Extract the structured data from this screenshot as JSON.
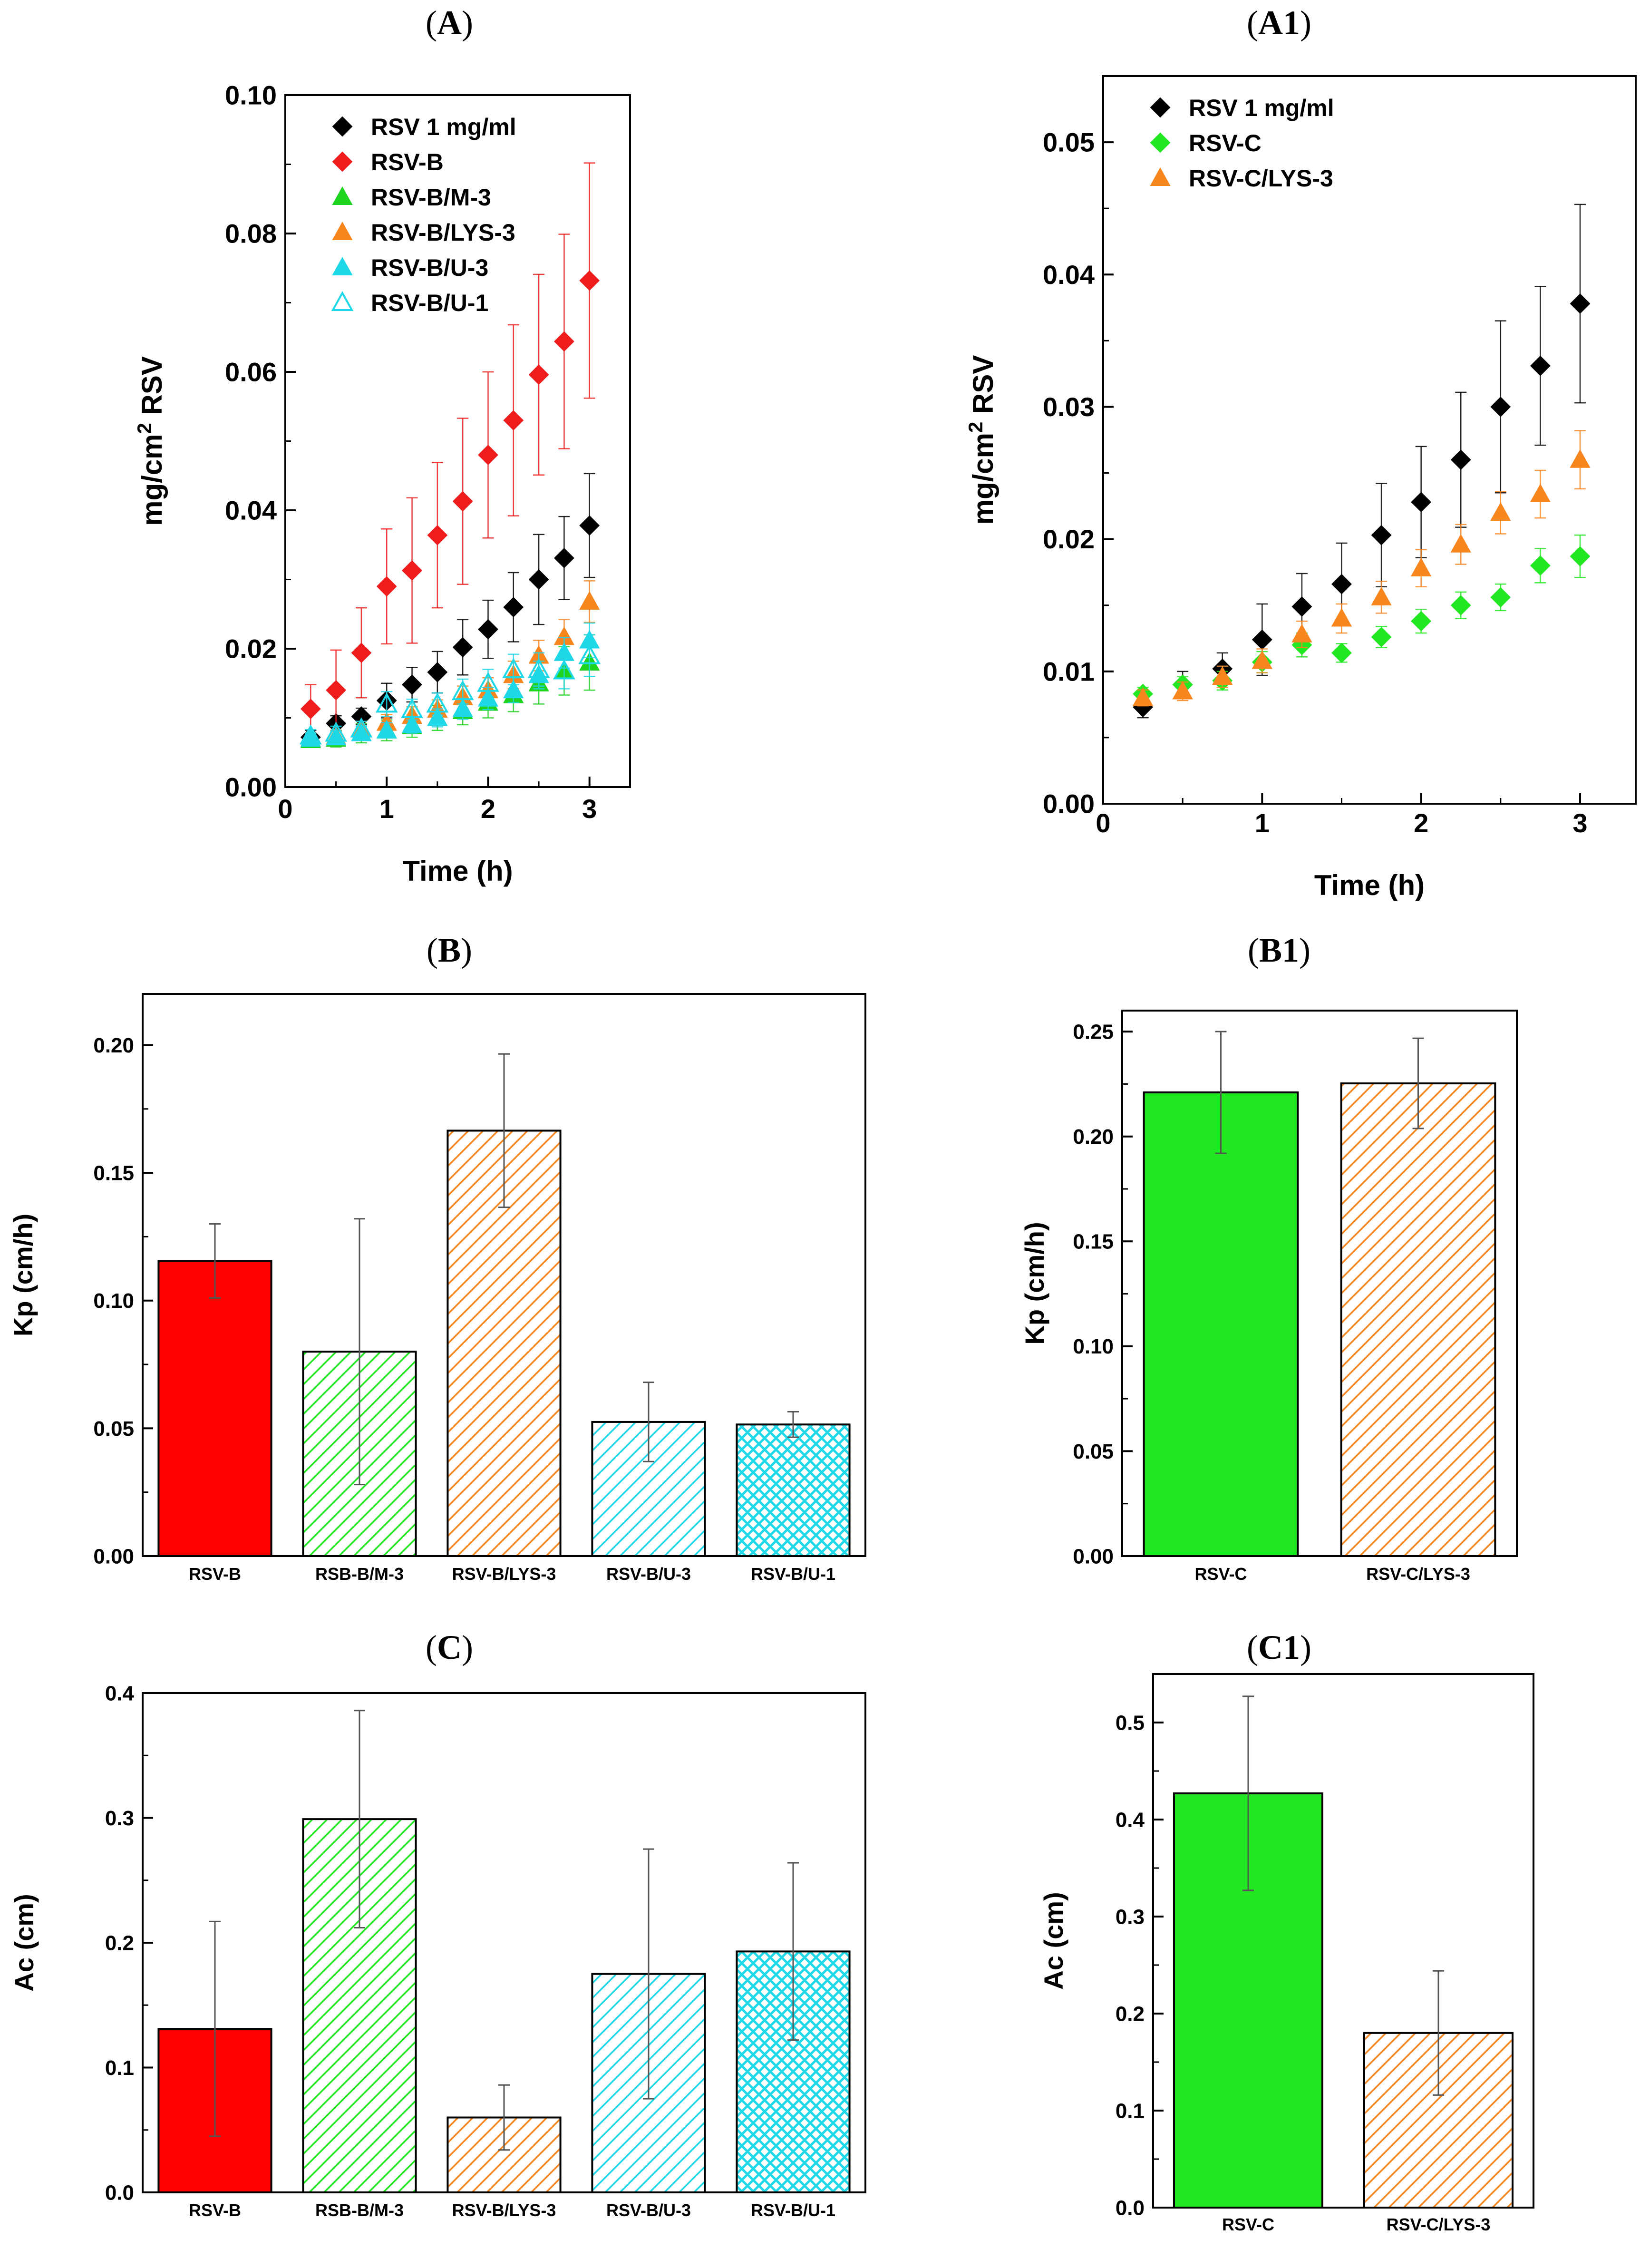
{
  "chart_data": [
    {
      "id": "A",
      "panel_label": "(A)",
      "type": "scatter",
      "xlabel": "Time (h)",
      "ylabel": "mg/cm² RSV",
      "xlim": [
        0,
        3.4
      ],
      "ylim": [
        0,
        0.1
      ],
      "xticks": [
        "0",
        "1",
        "2",
        "3"
      ],
      "yticks": [
        "0.00",
        "0.02",
        "0.04",
        "0.06",
        "0.08",
        "0.10"
      ],
      "legend_position": "top-left",
      "x": [
        0.25,
        0.5,
        0.75,
        1.0,
        1.25,
        1.5,
        1.75,
        2.0,
        2.25,
        2.5,
        2.75,
        3.0
      ],
      "series": [
        {
          "name": "RSV 1 mg/ml",
          "color": "#000000",
          "marker": "diamond",
          "values": [
            0.0072,
            0.0092,
            0.0102,
            0.0125,
            0.0148,
            0.0166,
            0.0202,
            0.0228,
            0.026,
            0.03,
            0.0331,
            0.0378
          ],
          "errors": [
            0.001,
            0.0011,
            0.0012,
            0.0025,
            0.0025,
            0.003,
            0.004,
            0.0042,
            0.005,
            0.0065,
            0.006,
            0.0075
          ]
        },
        {
          "name": "RSV-B",
          "color": "#ee1c1c",
          "marker": "diamond",
          "values": [
            0.0113,
            0.014,
            0.0194,
            0.029,
            0.0313,
            0.0364,
            0.0413,
            0.048,
            0.053,
            0.0596,
            0.0644,
            0.0732
          ],
          "errors": [
            0.0035,
            0.0058,
            0.0065,
            0.0083,
            0.0105,
            0.0105,
            0.012,
            0.012,
            0.0138,
            0.0145,
            0.0155,
            0.017
          ]
        },
        {
          "name": "RSV-B/M-3",
          "color": "#1ed41e",
          "marker": "triangle",
          "values": [
            0.0068,
            0.007,
            0.0078,
            0.0082,
            0.0088,
            0.01,
            0.011,
            0.0122,
            0.0133,
            0.015,
            0.0168,
            0.018
          ],
          "errors": [
            0.001,
            0.0012,
            0.0014,
            0.0015,
            0.0016,
            0.0018,
            0.002,
            0.0022,
            0.0024,
            0.003,
            0.0035,
            0.004
          ]
        },
        {
          "name": "RSV-B/LYS-3",
          "color": "#f7861f",
          "marker": "triangle",
          "values": [
            0.007,
            0.0073,
            0.0085,
            0.0093,
            0.0103,
            0.0112,
            0.013,
            0.014,
            0.0162,
            0.019,
            0.0217,
            0.0268
          ],
          "errors": [
            0.0008,
            0.0009,
            0.001,
            0.0012,
            0.0013,
            0.0014,
            0.0016,
            0.0018,
            0.002,
            0.0022,
            0.0025,
            0.003
          ]
        },
        {
          "name": "RSV-B/U-3",
          "color": "#1ed8e8",
          "marker": "triangle",
          "values": [
            0.007,
            0.0072,
            0.0078,
            0.0082,
            0.009,
            0.01,
            0.0113,
            0.0128,
            0.014,
            0.0162,
            0.0194,
            0.0212
          ],
          "errors": [
            0.0008,
            0.0009,
            0.001,
            0.0011,
            0.0012,
            0.0013,
            0.0015,
            0.0016,
            0.0018,
            0.002,
            0.0022,
            0.0025
          ]
        },
        {
          "name": "RSV-B/U-1",
          "color": "#1ed8e8",
          "marker": "triangle-open",
          "values": [
            0.0074,
            0.0078,
            0.0084,
            0.012,
            0.0112,
            0.012,
            0.0138,
            0.015,
            0.017,
            0.017,
            0.0168,
            0.019
          ],
          "errors": [
            0.0009,
            0.001,
            0.0011,
            0.0018,
            0.0015,
            0.0016,
            0.0018,
            0.002,
            0.0022,
            0.0024,
            0.0026,
            0.003
          ]
        }
      ]
    },
    {
      "id": "A1",
      "panel_label": "(A1)",
      "type": "scatter",
      "xlabel": "Time (h)",
      "ylabel": "mg/cm² RSV",
      "xlim": [
        0,
        3.35
      ],
      "ylim": [
        0,
        0.055
      ],
      "xticks": [
        "0",
        "1",
        "2",
        "3"
      ],
      "yticks": [
        "0.00",
        "0.01",
        "0.02",
        "0.03",
        "0.04",
        "0.05"
      ],
      "legend_position": "top-left",
      "x": [
        0.25,
        0.5,
        0.75,
        1.0,
        1.25,
        1.5,
        1.75,
        2.0,
        2.25,
        2.5,
        2.75,
        3.0
      ],
      "series": [
        {
          "name": "RSV 1 mg/ml",
          "color": "#000000",
          "marker": "diamond",
          "values": [
            0.0073,
            0.009,
            0.0102,
            0.0124,
            0.0149,
            0.0166,
            0.0203,
            0.0228,
            0.026,
            0.03,
            0.0331,
            0.0378
          ],
          "errors": [
            0.0008,
            0.001,
            0.0012,
            0.0027,
            0.0025,
            0.0031,
            0.0039,
            0.0042,
            0.0051,
            0.0065,
            0.006,
            0.0075
          ]
        },
        {
          "name": "RSV-C",
          "color": "#22e822",
          "marker": "diamond",
          "values": [
            0.0083,
            0.009,
            0.0093,
            0.0107,
            0.012,
            0.0114,
            0.0126,
            0.0138,
            0.015,
            0.0156,
            0.018,
            0.0187
          ],
          "errors": [
            0.0005,
            0.0006,
            0.0007,
            0.0008,
            0.0009,
            0.0007,
            0.0008,
            0.0009,
            0.001,
            0.001,
            0.0013,
            0.0016
          ]
        },
        {
          "name": "RSV-C/LYS-3",
          "color": "#f7861f",
          "marker": "triangle",
          "values": [
            0.008,
            0.0085,
            0.0096,
            0.0108,
            0.0128,
            0.014,
            0.0156,
            0.0178,
            0.0196,
            0.022,
            0.0234,
            0.026
          ],
          "errors": [
            0.0006,
            0.0007,
            0.0008,
            0.0009,
            0.001,
            0.0011,
            0.0012,
            0.0014,
            0.0015,
            0.0016,
            0.0018,
            0.0022
          ]
        }
      ]
    },
    {
      "id": "B",
      "panel_label": "(B)",
      "type": "bar",
      "ylabel": "Kp (cm/h)",
      "ylim": [
        0,
        0.22
      ],
      "yticks": [
        "0.00",
        "0.05",
        "0.10",
        "0.15",
        "0.20"
      ],
      "categories": [
        "RSV-B",
        "RSB-B/M-3",
        "RSV-B/LYS-3",
        "RSV-B/U-3",
        "RSV-B/U-1"
      ],
      "values": [
        0.1155,
        0.08,
        0.1665,
        0.0525,
        0.0515
      ],
      "errors": [
        0.0145,
        0.052,
        0.03,
        0.0155,
        0.005
      ],
      "colors": [
        "#ff0000",
        "#22e822",
        "#f7861f",
        "#1ed8e8",
        "#1ed8e8"
      ],
      "patterns": [
        "solid",
        "diag",
        "diag",
        "diag",
        "cross"
      ]
    },
    {
      "id": "B1",
      "panel_label": "(B1)",
      "type": "bar",
      "ylabel": "Kp (cm/h)",
      "ylim": [
        0,
        0.26
      ],
      "yticks": [
        "0.00",
        "0.05",
        "0.10",
        "0.15",
        "0.20",
        "0.25"
      ],
      "categories": [
        "RSV-C",
        "RSV-C/LYS-3"
      ],
      "values": [
        0.221,
        0.2253
      ],
      "errors": [
        0.029,
        0.0215
      ],
      "colors": [
        "#22e822",
        "#f7861f"
      ],
      "patterns": [
        "solid",
        "diag"
      ]
    },
    {
      "id": "C",
      "panel_label": "(C)",
      "type": "bar",
      "ylabel": "Ac (cm)",
      "ylim": [
        0,
        0.4
      ],
      "yticks": [
        "0.0",
        "0.1",
        "0.2",
        "0.3",
        "0.4"
      ],
      "categories": [
        "RSV-B",
        "RSB-B/M-3",
        "RSV-B/LYS-3",
        "RSV-B/U-3",
        "RSV-B/U-1"
      ],
      "values": [
        0.131,
        0.299,
        0.06,
        0.175,
        0.193
      ],
      "errors": [
        0.086,
        0.087,
        0.026,
        0.1,
        0.071
      ],
      "colors": [
        "#ff0000",
        "#22e822",
        "#f7861f",
        "#1ed8e8",
        "#1ed8e8"
      ],
      "patterns": [
        "solid",
        "diag",
        "diag",
        "diag",
        "cross"
      ]
    },
    {
      "id": "C1",
      "panel_label": "(C1)",
      "type": "bar",
      "ylabel": "Ac (cm)",
      "ylim": [
        0,
        0.55
      ],
      "yticks": [
        "0.0",
        "0.1",
        "0.2",
        "0.3",
        "0.4",
        "0.5"
      ],
      "categories": [
        "RSV-C",
        "RSV-C/LYS-3"
      ],
      "values": [
        0.427,
        0.18
      ],
      "errors": [
        0.1,
        0.064
      ],
      "colors": [
        "#22e822",
        "#f7861f"
      ],
      "patterns": [
        "solid",
        "diag"
      ]
    }
  ]
}
